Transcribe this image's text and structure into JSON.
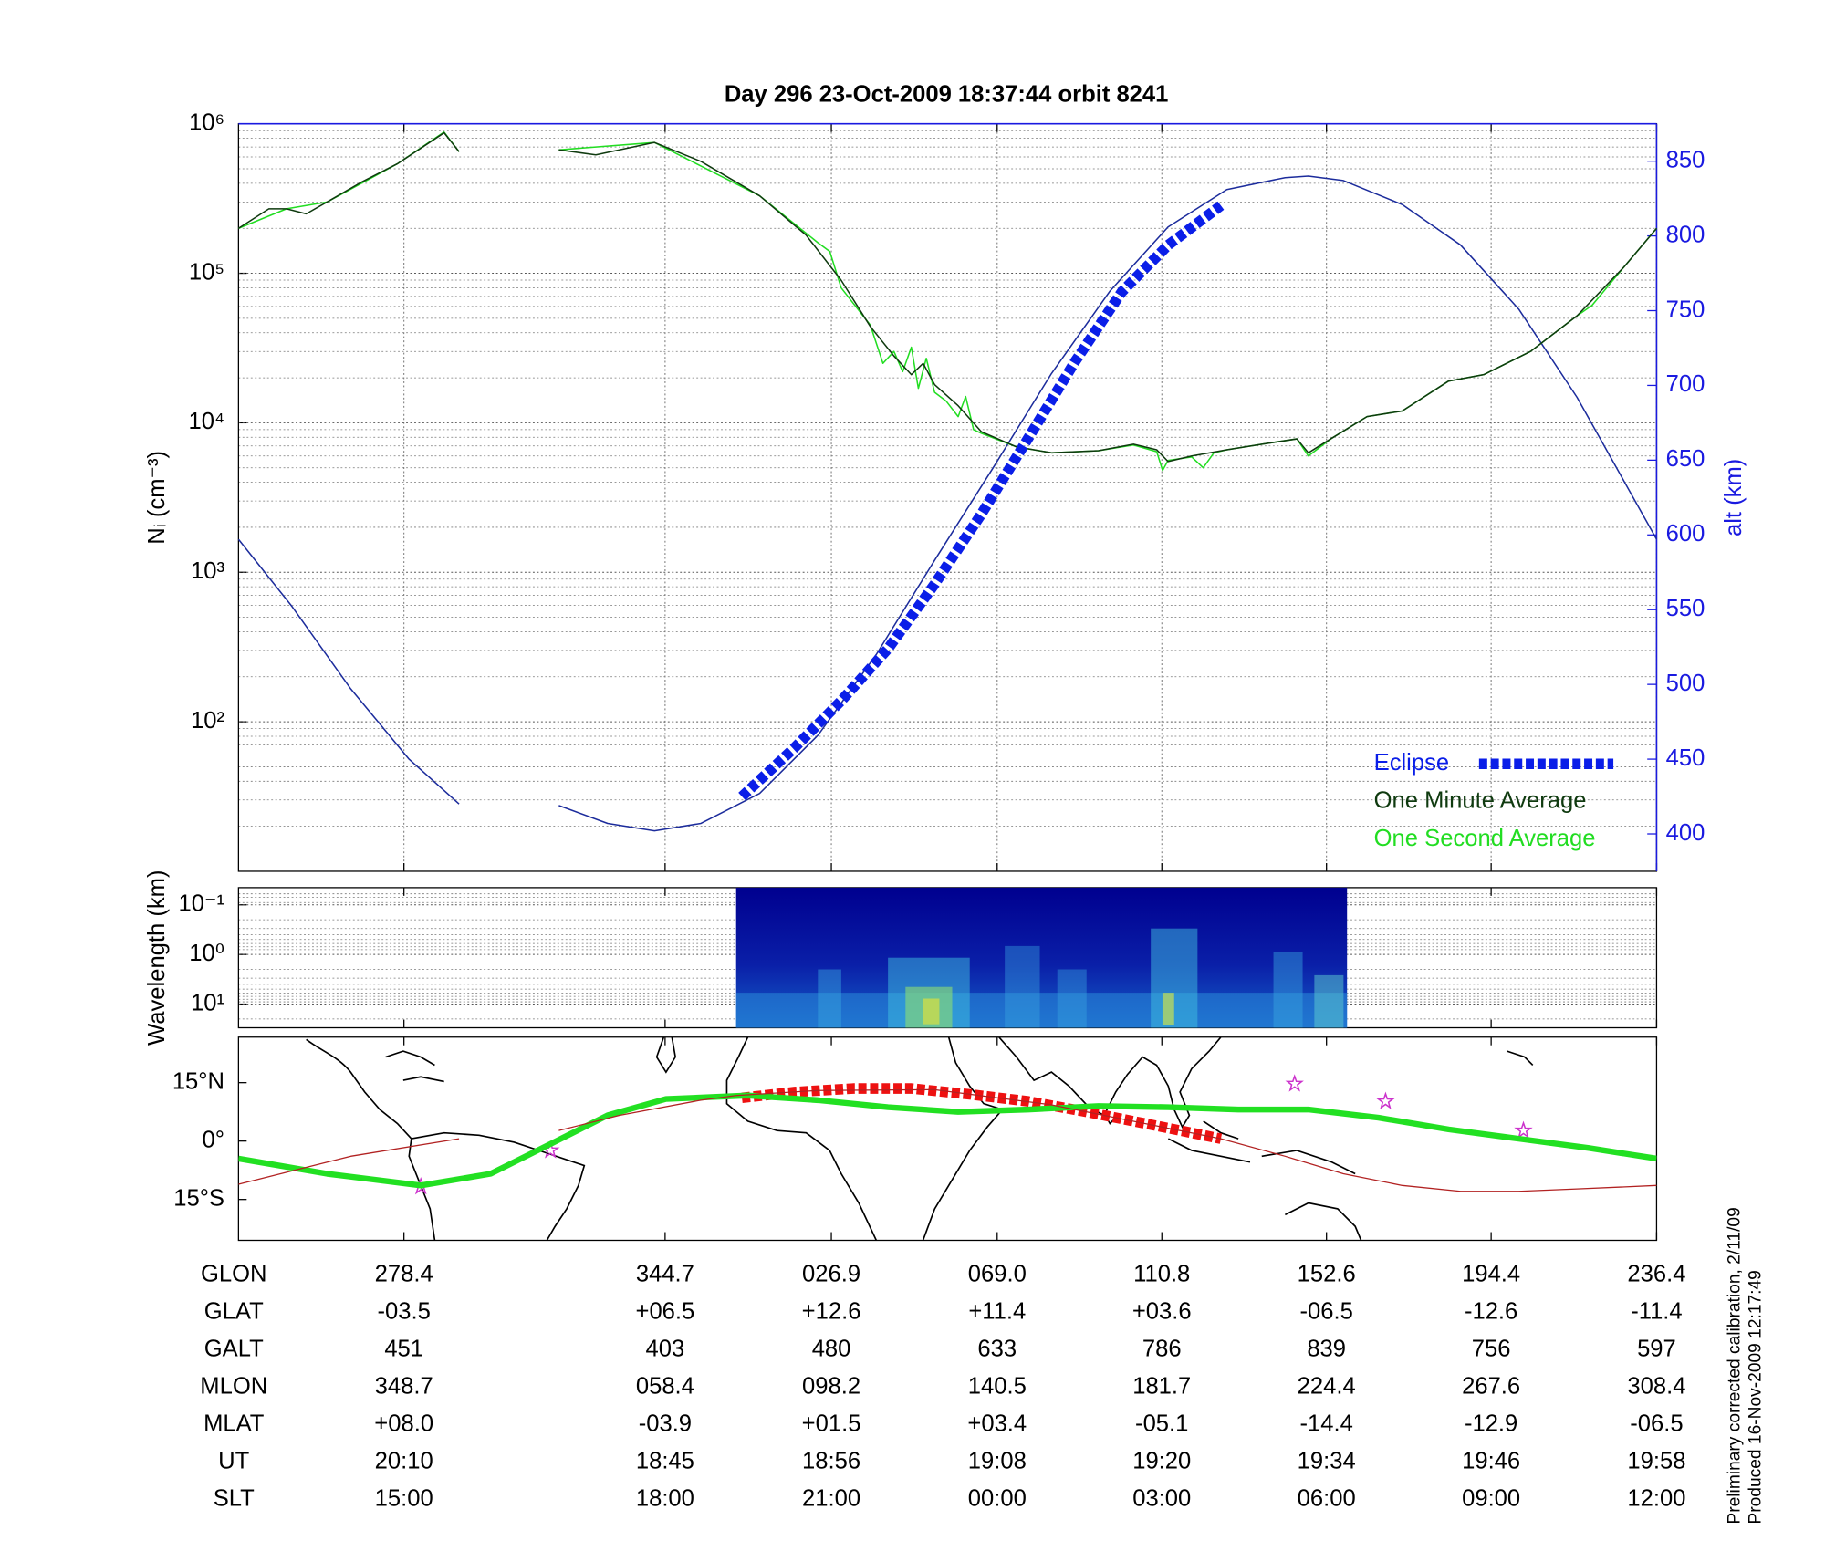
{
  "chart_data": [
    {
      "type": "line",
      "title": "Day 296  23-Oct-2009 18:37:44   orbit 8241",
      "xlabel": "GLON",
      "ylabel": "Nᵢ (cm⁻³)",
      "y2label": "alt (km)",
      "xlim": [
        236.4,
        596.4
      ],
      "xticks": [
        278.4,
        344.7,
        {
          "value": 386.9,
          "label": "026.9"
        },
        {
          "value": 429.0,
          "label": "069.0"
        },
        {
          "value": 470.8,
          "label": "110.8"
        },
        {
          "value": 512.6,
          "label": "152.6"
        },
        {
          "value": 554.4,
          "label": "194.4"
        },
        {
          "value": 596.4,
          "label": "236.4"
        }
      ],
      "log_y": true,
      "ylim": [
        10,
        1000000
      ],
      "yticks": [
        {
          "value": 100,
          "label": "10²"
        },
        {
          "value": 1000,
          "label": "10³"
        },
        {
          "value": 10000,
          "label": "10⁴"
        },
        {
          "value": 100000,
          "label": "10⁵"
        },
        {
          "value": 1000000,
          "label": "10⁶"
        }
      ],
      "y2lim": [
        375,
        875
      ],
      "y2ticks": [
        400,
        450,
        500,
        550,
        600,
        650,
        700,
        750,
        800,
        850
      ],
      "y2color": "#1a1ae0",
      "grid": true,
      "legend": "lower right",
      "series": [
        {
          "name": "Eclipse",
          "color": "#0a1ee8",
          "style": "dashed",
          "axis": "y2",
          "x": [
            364.2,
            377.6,
            389.4,
            401.3,
            413.1,
            425.0,
            436.9,
            448.7,
            460.6,
            472.4,
            485.8
          ],
          "values": [
            425,
            457.8,
            489,
            524,
            567,
            614,
            664.8,
            715.6,
            762.5,
            793.8,
            820.3
          ]
        },
        {
          "name": "One Minute Average",
          "color": "#0f3a0f",
          "x": [
            236.4,
            244.1,
            248.6,
            253.6,
            258.9,
            267.8,
            276.7,
            288.6,
            292.4,
            305,
            317.7,
            327.1,
            342.0,
            353.8,
            368.7,
            380.5,
            389.4,
            396.8,
            402.8,
            407.2,
            410.2,
            413.1,
            419.1,
            425.0,
            433.9,
            442.8,
            454.7,
            463.6,
            469.5,
            472.4,
            478.4,
            487.3,
            496.2,
            505.1,
            508.0,
            514.0,
            522.9,
            531.8,
            543.6,
            552.5,
            564.4,
            576.2,
            588.1,
            596.4
          ],
          "values": [
            200000,
            270000,
            270000,
            250000,
            300000,
            410000,
            540000,
            870000,
            650000,
            null,
            670000,
            620000,
            750000,
            560000,
            330000,
            180000,
            90000,
            44000,
            28000,
            21000,
            25000,
            18000,
            13000,
            8700,
            6900,
            6300,
            6500,
            7200,
            6600,
            5500,
            6000,
            6600,
            7200,
            7800,
            6300,
            7900,
            11000,
            12000,
            19000,
            21000,
            30000,
            52000,
            110000,
            200000
          ]
        },
        {
          "name": "One Second Average",
          "color": "#22dd22",
          "x": [
            236.4,
            248.6,
            258.9,
            276.7,
            288.6,
            292.4,
            305,
            317.7,
            342.0,
            368.7,
            383.5,
            386.5,
            389.4,
            396.8,
            400,
            402.8,
            405,
            407.2,
            409,
            411,
            413.1,
            416,
            419.1,
            421,
            423,
            425.0,
            433.9,
            442.8,
            454.7,
            463.6,
            469.5,
            471,
            472.4,
            478.4,
            481.3,
            484,
            487.3,
            496.2,
            505.1,
            508.0,
            514.0,
            522.9,
            531.8,
            543.6,
            552.5,
            564.4,
            576.2,
            580,
            588.1,
            596.4
          ],
          "values": [
            200000,
            270000,
            300000,
            540000,
            880000,
            650000,
            null,
            670000,
            750000,
            330000,
            160000,
            140000,
            80000,
            45000,
            25000,
            30000,
            22000,
            32000,
            17000,
            27000,
            16000,
            14000,
            11000,
            15000,
            9000,
            8500,
            6900,
            6300,
            6500,
            7100,
            6400,
            4800,
            5600,
            5900,
            5000,
            6300,
            6600,
            7200,
            7800,
            6000,
            7900,
            11000,
            12000,
            19000,
            21000,
            30000,
            52000,
            61000,
            110000,
            200000
          ]
        },
        {
          "color": "#1c2c9c",
          "axis": "y2",
          "x": [
            236.4,
            250.0,
            264.9,
            279.7,
            292.4,
            305,
            317.7,
            330.1,
            342.0,
            353.8,
            368.7,
            383.5,
            398.3,
            413.1,
            428.0,
            442.8,
            457.6,
            472.4,
            487.3,
            502.1,
            508.0,
            516.9,
            531.8,
            546.6,
            561.4,
            576.2,
            591.1,
            596.4
          ],
          "values": [
            597,
            552,
            497,
            450,
            420,
            null,
            419,
            407,
            402,
            407,
            427,
            466,
            520,
            583,
            645,
            708,
            763,
            806,
            831,
            839,
            840,
            837,
            821,
            794,
            751,
            692,
            622,
            597
          ]
        }
      ]
    },
    {
      "type": "spectrogram",
      "ylabel": "Wavelength (km)",
      "log_y": true,
      "ylim": [
        30,
        0.045
      ],
      "yticks": [
        {
          "value": 0.1,
          "label": "10⁻¹"
        },
        {
          "value": 1,
          "label": "10⁰"
        },
        {
          "value": 10,
          "label": "10¹"
        }
      ],
      "grid": true
    },
    {
      "type": "line",
      "xlim": [
        236.4,
        596.4
      ],
      "ylim": [
        -25.5,
        26.7
      ],
      "yticks": [
        {
          "value": 15,
          "label": "15°N"
        },
        {
          "value": 0,
          "label": "0°"
        },
        {
          "value": -15,
          "label": "15°S"
        }
      ],
      "grid": false,
      "series": [
        {
          "color": "#b22222",
          "style": "thin",
          "x": [
            236.4,
            264.9,
            292.4,
            305,
            317.7,
            333.1,
            353.8,
            362.7,
            383.5,
            413.1,
            442.8,
            472.4,
            485.8,
            502.1,
            516.9,
            531.8,
            546.6,
            561.4,
            576.2,
            596.4
          ],
          "values": [
            -11.1,
            -3.9,
            0.6,
            null,
            2.7,
            6.6,
            10.5,
            11.7,
            13.0,
            13.2,
            9.3,
            3.3,
            0.6,
            -3.9,
            -8.4,
            -11.4,
            -12.9,
            -12.9,
            -12.3,
            -11.4
          ]
        },
        {
          "color": "#22e022",
          "style": "thick",
          "x": [
            236.4,
            258.9,
            282.7,
            300.4,
            315.3,
            330.1,
            344.9,
            365.7,
            383.5,
            401.3,
            419.1,
            436.9,
            454.7,
            472.4,
            490.2,
            508.0,
            525.8,
            543.6,
            561.4,
            579.2,
            596.4
          ],
          "values": [
            -4.5,
            -8.4,
            -11.4,
            -8.4,
            -0.9,
            6.6,
            10.8,
            11.7,
            10.5,
            8.7,
            7.5,
            8.1,
            9,
            8.7,
            8.1,
            8.1,
            6,
            3,
            0.6,
            -1.8,
            -4.5
          ]
        },
        {
          "color": "#ee1111",
          "style": "dashed",
          "x": [
            364.2,
            377.6,
            392.4,
            407.2,
            422.1,
            436.9,
            451.7,
            466.6,
            478.4,
            485.8
          ],
          "values": [
            11.1,
            12.6,
            13.5,
            13.5,
            12,
            10.2,
            7.5,
            4.5,
            2.1,
            0.6
          ]
        },
        {
          "color": "#cc33cc",
          "marker": "star",
          "x": [
            282.7,
            315.6,
            504.5,
            527.6,
            562.6
          ],
          "values": [
            -11.7,
            -2.4,
            14.7,
            10.2,
            2.7
          ]
        }
      ]
    }
  ],
  "table": {
    "rows": [
      {
        "label": "GLAT",
        "cells": [
          "-03.5",
          "+06.5",
          "+12.6",
          "+11.4",
          "+03.6",
          "-06.5",
          "-12.6",
          "-11.4"
        ]
      },
      {
        "label": "GALT",
        "cells": [
          "451",
          "403",
          "480",
          "633",
          "786",
          "839",
          "756",
          "597"
        ]
      },
      {
        "label": "MLON",
        "cells": [
          "348.7",
          "058.4",
          "098.2",
          "140.5",
          "181.7",
          "224.4",
          "267.6",
          "308.4"
        ]
      },
      {
        "label": "MLAT",
        "cells": [
          "+08.0",
          "-03.9",
          "+01.5",
          "+03.4",
          "-05.1",
          "-14.4",
          "-12.9",
          "-06.5"
        ]
      },
      {
        "label": "UT",
        "cells": [
          "20:10",
          "18:45",
          "18:56",
          "19:08",
          "19:20",
          "19:34",
          "19:46",
          "19:58"
        ]
      },
      {
        "label": "SLT",
        "cells": [
          "15:00",
          "18:00",
          "21:00",
          "00:00",
          "03:00",
          "06:00",
          "09:00",
          "12:00"
        ]
      }
    ]
  },
  "notes": [
    "Preliminary corrected calibration, 2/11/09",
    "Produced 16-Nov-2009 12:17:49"
  ]
}
